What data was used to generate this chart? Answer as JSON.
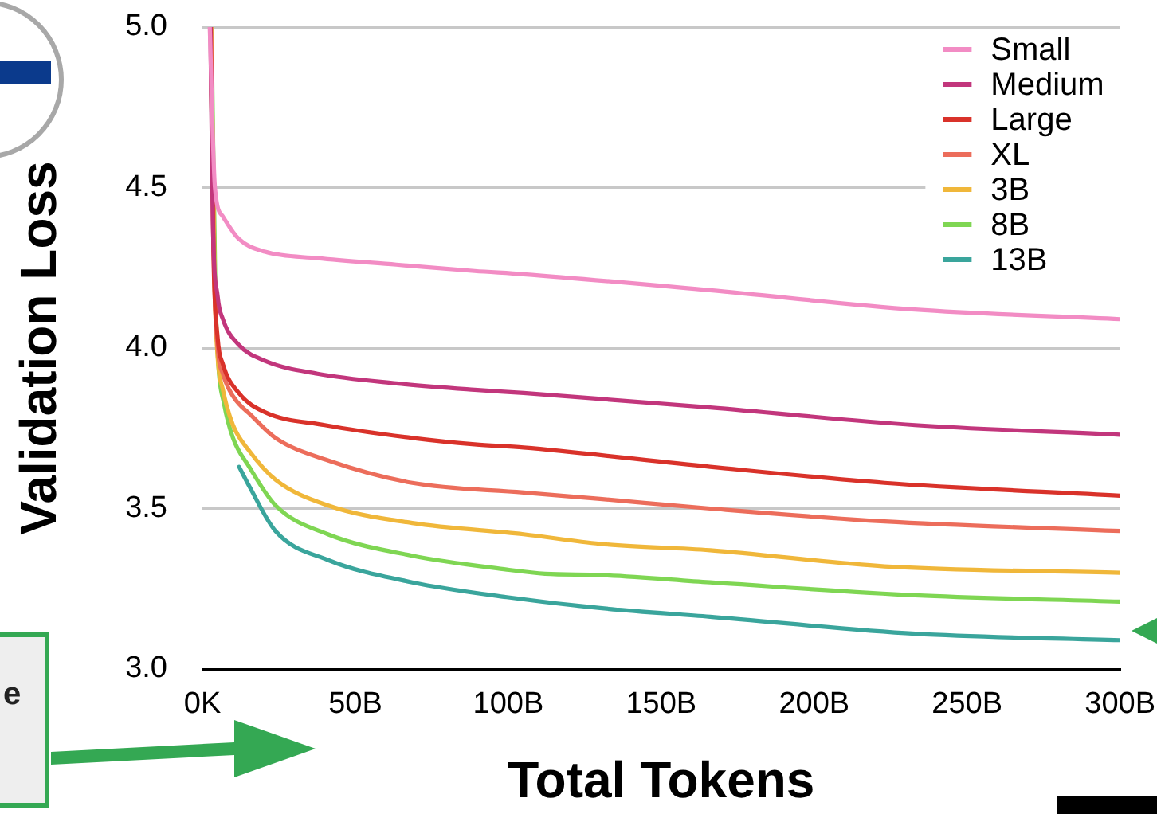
{
  "chart_data": {
    "type": "line",
    "xlabel": "Total Tokens",
    "ylabel": "Validation Loss",
    "annotations": [
      "e"
    ],
    "xlim": [
      0,
      300
    ],
    "xticks": [
      {
        "value": 0,
        "label": "0K"
      },
      {
        "value": 50,
        "label": "50B"
      },
      {
        "value": 100,
        "label": "100B"
      },
      {
        "value": 150,
        "label": "150B"
      },
      {
        "value": 200,
        "label": "200B"
      },
      {
        "value": 250,
        "label": "250B"
      },
      {
        "value": 300,
        "label": "300B"
      }
    ],
    "ylim": [
      3.0,
      5.0
    ],
    "yticks": [
      {
        "value": 3.0,
        "label": "3.0"
      },
      3.5,
      {
        "value": 4.0,
        "label": "4.0"
      },
      4.5,
      {
        "value": 5.0,
        "label": "5.0"
      }
    ],
    "grid": "y",
    "legend": "top right",
    "line_style": "solid",
    "series": [
      {
        "name": "Small",
        "color": "#f28cc4",
        "x": [
          2.4,
          4.1,
          6.7,
          11.9,
          20.5,
          37.6,
          63.4,
          89,
          105,
          166,
          233,
          300
        ],
        "values": [
          5.0,
          4.5,
          4.41,
          4.34,
          4.3,
          4.28,
          4.26,
          4.24,
          4.23,
          4.18,
          4.12,
          4.09
        ]
      },
      {
        "name": "Medium",
        "color": "#c2367c",
        "x": [
          2.6,
          3.4,
          5,
          6.7,
          11.9,
          20.5,
          37.6,
          63.4,
          89,
          105,
          166,
          233,
          300
        ],
        "values": [
          5.0,
          4.4,
          4.16,
          4.09,
          4.01,
          3.96,
          3.92,
          3.89,
          3.87,
          3.86,
          3.815,
          3.76,
          3.73
        ]
      },
      {
        "name": "Large",
        "color": "#d9322a",
        "x": [
          2.7,
          3.6,
          5,
          6.7,
          11.9,
          20.5,
          40,
          68.6,
          89,
          105,
          166,
          223,
          300
        ],
        "values": [
          5.0,
          4.3,
          4.03,
          3.95,
          3.86,
          3.8,
          3.76,
          3.72,
          3.7,
          3.69,
          3.63,
          3.58,
          3.54
        ]
      },
      {
        "name": "XL",
        "color": "#ec6d5b",
        "x": [
          2.8,
          3.8,
          5,
          6.7,
          10,
          16,
          23.9,
          41,
          68.6,
          105,
          130,
          166,
          223,
          300
        ],
        "values": [
          5.0,
          4.25,
          4.0,
          3.92,
          3.85,
          3.79,
          3.72,
          3.65,
          3.58,
          3.55,
          3.53,
          3.5,
          3.46,
          3.43
        ]
      },
      {
        "name": "3B",
        "color": "#f0b73a",
        "x": [
          2.9,
          4,
          5,
          6.7,
          10,
          15.3,
          23.9,
          41,
          68.6,
          105,
          130,
          166,
          223,
          300
        ],
        "values": [
          5.0,
          4.2,
          3.97,
          3.87,
          3.76,
          3.68,
          3.59,
          3.51,
          3.455,
          3.42,
          3.39,
          3.37,
          3.32,
          3.3
        ]
      },
      {
        "name": "8B",
        "color": "#7fd653",
        "x": [
          3,
          4.2,
          5.2,
          7,
          10,
          15.3,
          23.9,
          41,
          68.6,
          99.5,
          112,
          130,
          166,
          233,
          300
        ],
        "values": [
          5.0,
          4.2,
          3.95,
          3.83,
          3.72,
          3.63,
          3.51,
          3.42,
          3.353,
          3.31,
          3.297,
          3.293,
          3.27,
          3.23,
          3.21
        ]
      },
      {
        "name": "13B",
        "color": "#3aa59c",
        "x": [
          12,
          15.3,
          23.9,
          41,
          68.6,
          99.5,
          130,
          166,
          233,
          300
        ],
        "values": [
          3.63,
          3.57,
          3.43,
          3.34,
          3.27,
          3.224,
          3.19,
          3.163,
          3.11,
          3.09
        ]
      }
    ]
  }
}
